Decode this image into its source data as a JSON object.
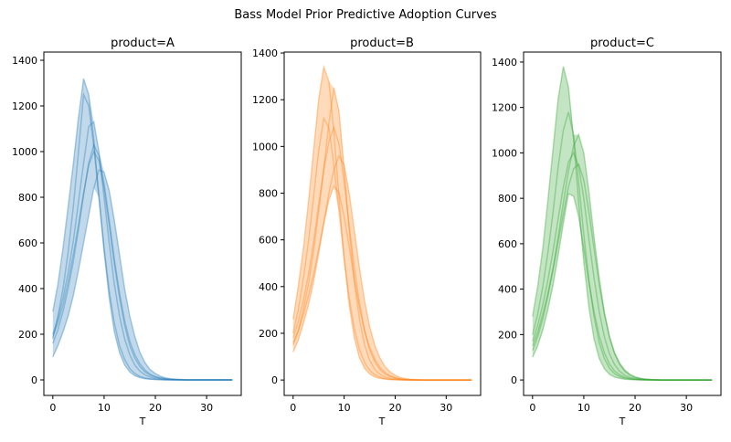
{
  "title": "Bass Model Prior Predictive Adoption Curves",
  "colors": {
    "A": "#1f77b4",
    "B": "#ff7f0e",
    "C": "#2ca02c"
  },
  "chart_data": [
    {
      "type": "line",
      "title": "product=A",
      "xlabel": "T",
      "ylabel": "",
      "color": "#1f77b4",
      "xlim": [
        -1.75,
        36.75
      ],
      "ylim": [
        -68,
        1436
      ],
      "xticks": [
        0,
        10,
        20,
        30
      ],
      "yticks": [
        0,
        200,
        400,
        600,
        800,
        1000,
        1200,
        1400
      ],
      "grid": false,
      "band": "envelope of draws (shaded)",
      "x": [
        0,
        1,
        2,
        3,
        4,
        5,
        6,
        7,
        8,
        9,
        10,
        11,
        12,
        13,
        14,
        15,
        16,
        17,
        18,
        19,
        20,
        21,
        22,
        23,
        24,
        25,
        26,
        27,
        28,
        29,
        30,
        31,
        32,
        33,
        34,
        35
      ],
      "series": [
        {
          "values": [
            300,
            420,
            580,
            760,
            950,
            1150,
            1320,
            1250,
            1050,
            800,
            560,
            360,
            210,
            120,
            65,
            35,
            18,
            10,
            5,
            3,
            2,
            1,
            0,
            0,
            0,
            0,
            0,
            0,
            0,
            0,
            0,
            0,
            0,
            0,
            0,
            0
          ]
        },
        {
          "values": [
            180,
            280,
            400,
            560,
            760,
            1000,
            1250,
            1200,
            1020,
            800,
            580,
            390,
            250,
            150,
            90,
            50,
            28,
            15,
            8,
            4,
            2,
            1,
            0,
            0,
            0,
            0,
            0,
            0,
            0,
            0,
            0,
            0,
            0,
            0,
            0,
            0
          ]
        },
        {
          "values": [
            200,
            270,
            360,
            470,
            610,
            780,
            950,
            1110,
            1130,
            1000,
            800,
            600,
            420,
            280,
            180,
            110,
            65,
            38,
            22,
            12,
            7,
            4,
            2,
            1,
            0,
            0,
            0,
            0,
            0,
            0,
            0,
            0,
            0,
            0,
            0,
            0
          ]
        },
        {
          "values": [
            160,
            220,
            300,
            400,
            520,
            660,
            810,
            950,
            1030,
            980,
            860,
            700,
            530,
            380,
            260,
            170,
            110,
            70,
            42,
            25,
            15,
            9,
            5,
            3,
            2,
            1,
            0,
            0,
            0,
            0,
            0,
            0,
            0,
            0,
            0,
            0
          ]
        },
        {
          "values": [
            100,
            150,
            210,
            280,
            370,
            480,
            600,
            720,
            840,
            920,
            910,
            830,
            700,
            550,
            400,
            280,
            190,
            120,
            75,
            45,
            28,
            16,
            9,
            5,
            3,
            2,
            0,
            0,
            0,
            0,
            0,
            0,
            0,
            0,
            0,
            0
          ]
        },
        {
          "values": [
            190,
            250,
            330,
            430,
            550,
            680,
            820,
            940,
            1000,
            960,
            840,
            680,
            510,
            360,
            240,
            150,
            95,
            58,
            35,
            20,
            12,
            7,
            4,
            2,
            1,
            0,
            0,
            0,
            0,
            0,
            0,
            0,
            0,
            0,
            0,
            0
          ]
        }
      ]
    },
    {
      "type": "line",
      "title": "product=B",
      "xlabel": "T",
      "ylabel": "",
      "color": "#ff7f0e",
      "xlim": [
        -1.75,
        36.75
      ],
      "ylim": [
        -66,
        1404
      ],
      "xticks": [
        0,
        10,
        20,
        30
      ],
      "yticks": [
        0,
        200,
        400,
        600,
        800,
        1000,
        1200,
        1400
      ],
      "grid": false,
      "band": "envelope of draws (shaded)",
      "x": [
        0,
        1,
        2,
        3,
        4,
        5,
        6,
        7,
        8,
        9,
        10,
        11,
        12,
        13,
        14,
        15,
        16,
        17,
        18,
        19,
        20,
        21,
        22,
        23,
        24,
        25,
        26,
        27,
        28,
        29,
        30,
        31,
        32,
        33,
        34,
        35
      ],
      "series": [
        {
          "values": [
            260,
            400,
            560,
            760,
            980,
            1200,
            1340,
            1280,
            1060,
            780,
            520,
            320,
            180,
            95,
            50,
            26,
            13,
            7,
            4,
            2,
            1,
            0,
            0,
            0,
            0,
            0,
            0,
            0,
            0,
            0,
            0,
            0,
            0,
            0,
            0,
            0
          ]
        },
        {
          "values": [
            150,
            210,
            300,
            410,
            550,
            720,
            900,
            1100,
            1250,
            1150,
            900,
            640,
            420,
            260,
            150,
            85,
            46,
            25,
            13,
            7,
            4,
            2,
            1,
            0,
            0,
            0,
            0,
            0,
            0,
            0,
            0,
            0,
            0,
            0,
            0,
            0
          ]
        },
        {
          "values": [
            200,
            300,
            430,
            590,
            780,
            980,
            1120,
            1080,
            920,
            720,
            520,
            350,
            220,
            130,
            75,
            42,
            23,
            12,
            6,
            3,
            2,
            1,
            0,
            0,
            0,
            0,
            0,
            0,
            0,
            0,
            0,
            0,
            0,
            0,
            0,
            0
          ]
        },
        {
          "values": [
            180,
            250,
            340,
            450,
            590,
            750,
            900,
            1020,
            1080,
            1010,
            850,
            660,
            480,
            330,
            210,
            130,
            78,
            45,
            26,
            15,
            8,
            4,
            2,
            1,
            0,
            0,
            0,
            0,
            0,
            0,
            0,
            0,
            0,
            0,
            0,
            0
          ]
        },
        {
          "values": [
            120,
            170,
            240,
            320,
            420,
            540,
            670,
            800,
            900,
            960,
            920,
            800,
            640,
            480,
            340,
            230,
            150,
            95,
            58,
            35,
            20,
            11,
            6,
            3,
            2,
            1,
            0,
            0,
            0,
            0,
            0,
            0,
            0,
            0,
            0,
            0
          ]
        },
        {
          "values": [
            160,
            210,
            280,
            360,
            450,
            560,
            670,
            770,
            830,
            800,
            700,
            570,
            430,
            310,
            210,
            140,
            90,
            55,
            32,
            18,
            10,
            5,
            3,
            2,
            1,
            0,
            0,
            0,
            0,
            0,
            0,
            0,
            0,
            0,
            0,
            0
          ]
        }
      ]
    },
    {
      "type": "line",
      "title": "product=C",
      "xlabel": "T",
      "ylabel": "",
      "color": "#2ca02c",
      "xlim": [
        -1.75,
        36.75
      ],
      "ylim": [
        -68,
        1444
      ],
      "xticks": [
        0,
        10,
        20,
        30
      ],
      "yticks": [
        0,
        200,
        400,
        600,
        800,
        1000,
        1200,
        1400
      ],
      "grid": false,
      "band": "envelope of draws (shaded)",
      "x": [
        0,
        1,
        2,
        3,
        4,
        5,
        6,
        7,
        8,
        9,
        10,
        11,
        12,
        13,
        14,
        15,
        16,
        17,
        18,
        19,
        20,
        21,
        22,
        23,
        24,
        25,
        26,
        27,
        28,
        29,
        30,
        31,
        32,
        33,
        34,
        35
      ],
      "series": [
        {
          "values": [
            280,
            410,
            580,
            790,
            1020,
            1240,
            1380,
            1290,
            1060,
            780,
            520,
            320,
            180,
            95,
            50,
            25,
            13,
            7,
            3,
            2,
            1,
            0,
            0,
            0,
            0,
            0,
            0,
            0,
            0,
            0,
            0,
            0,
            0,
            0,
            0,
            0
          ]
        },
        {
          "values": [
            200,
            290,
            410,
            560,
            740,
            940,
            1100,
            1180,
            1080,
            870,
            640,
            440,
            280,
            165,
            95,
            52,
            28,
            15,
            8,
            4,
            2,
            1,
            0,
            0,
            0,
            0,
            0,
            0,
            0,
            0,
            0,
            0,
            0,
            0,
            0,
            0
          ]
        },
        {
          "values": [
            130,
            190,
            270,
            370,
            490,
            630,
            780,
            920,
            1030,
            1080,
            1000,
            830,
            630,
            450,
            300,
            190,
            115,
            68,
            38,
            21,
            11,
            6,
            3,
            2,
            1,
            0,
            0,
            0,
            0,
            0,
            0,
            0,
            0,
            0,
            0,
            0
          ]
        },
        {
          "values": [
            170,
            240,
            330,
            440,
            570,
            710,
            850,
            960,
            1000,
            940,
            800,
            620,
            450,
            300,
            190,
            115,
            68,
            38,
            21,
            11,
            6,
            3,
            2,
            1,
            0,
            0,
            0,
            0,
            0,
            0,
            0,
            0,
            0,
            0,
            0,
            0
          ]
        },
        {
          "values": [
            150,
            210,
            290,
            380,
            490,
            610,
            730,
            850,
            930,
            950,
            880,
            740,
            580,
            420,
            290,
            190,
            120,
            74,
            44,
            25,
            14,
            8,
            4,
            2,
            1,
            0,
            0,
            0,
            0,
            0,
            0,
            0,
            0,
            0,
            0,
            0
          ]
        },
        {
          "values": [
            100,
            150,
            220,
            310,
            420,
            550,
            690,
            820,
            810,
            720,
            580,
            430,
            300,
            195,
            120,
            70,
            40,
            22,
            12,
            6,
            3,
            2,
            1,
            0,
            0,
            0,
            0,
            0,
            0,
            0,
            0,
            0,
            0,
            0,
            0,
            0
          ]
        }
      ]
    }
  ]
}
